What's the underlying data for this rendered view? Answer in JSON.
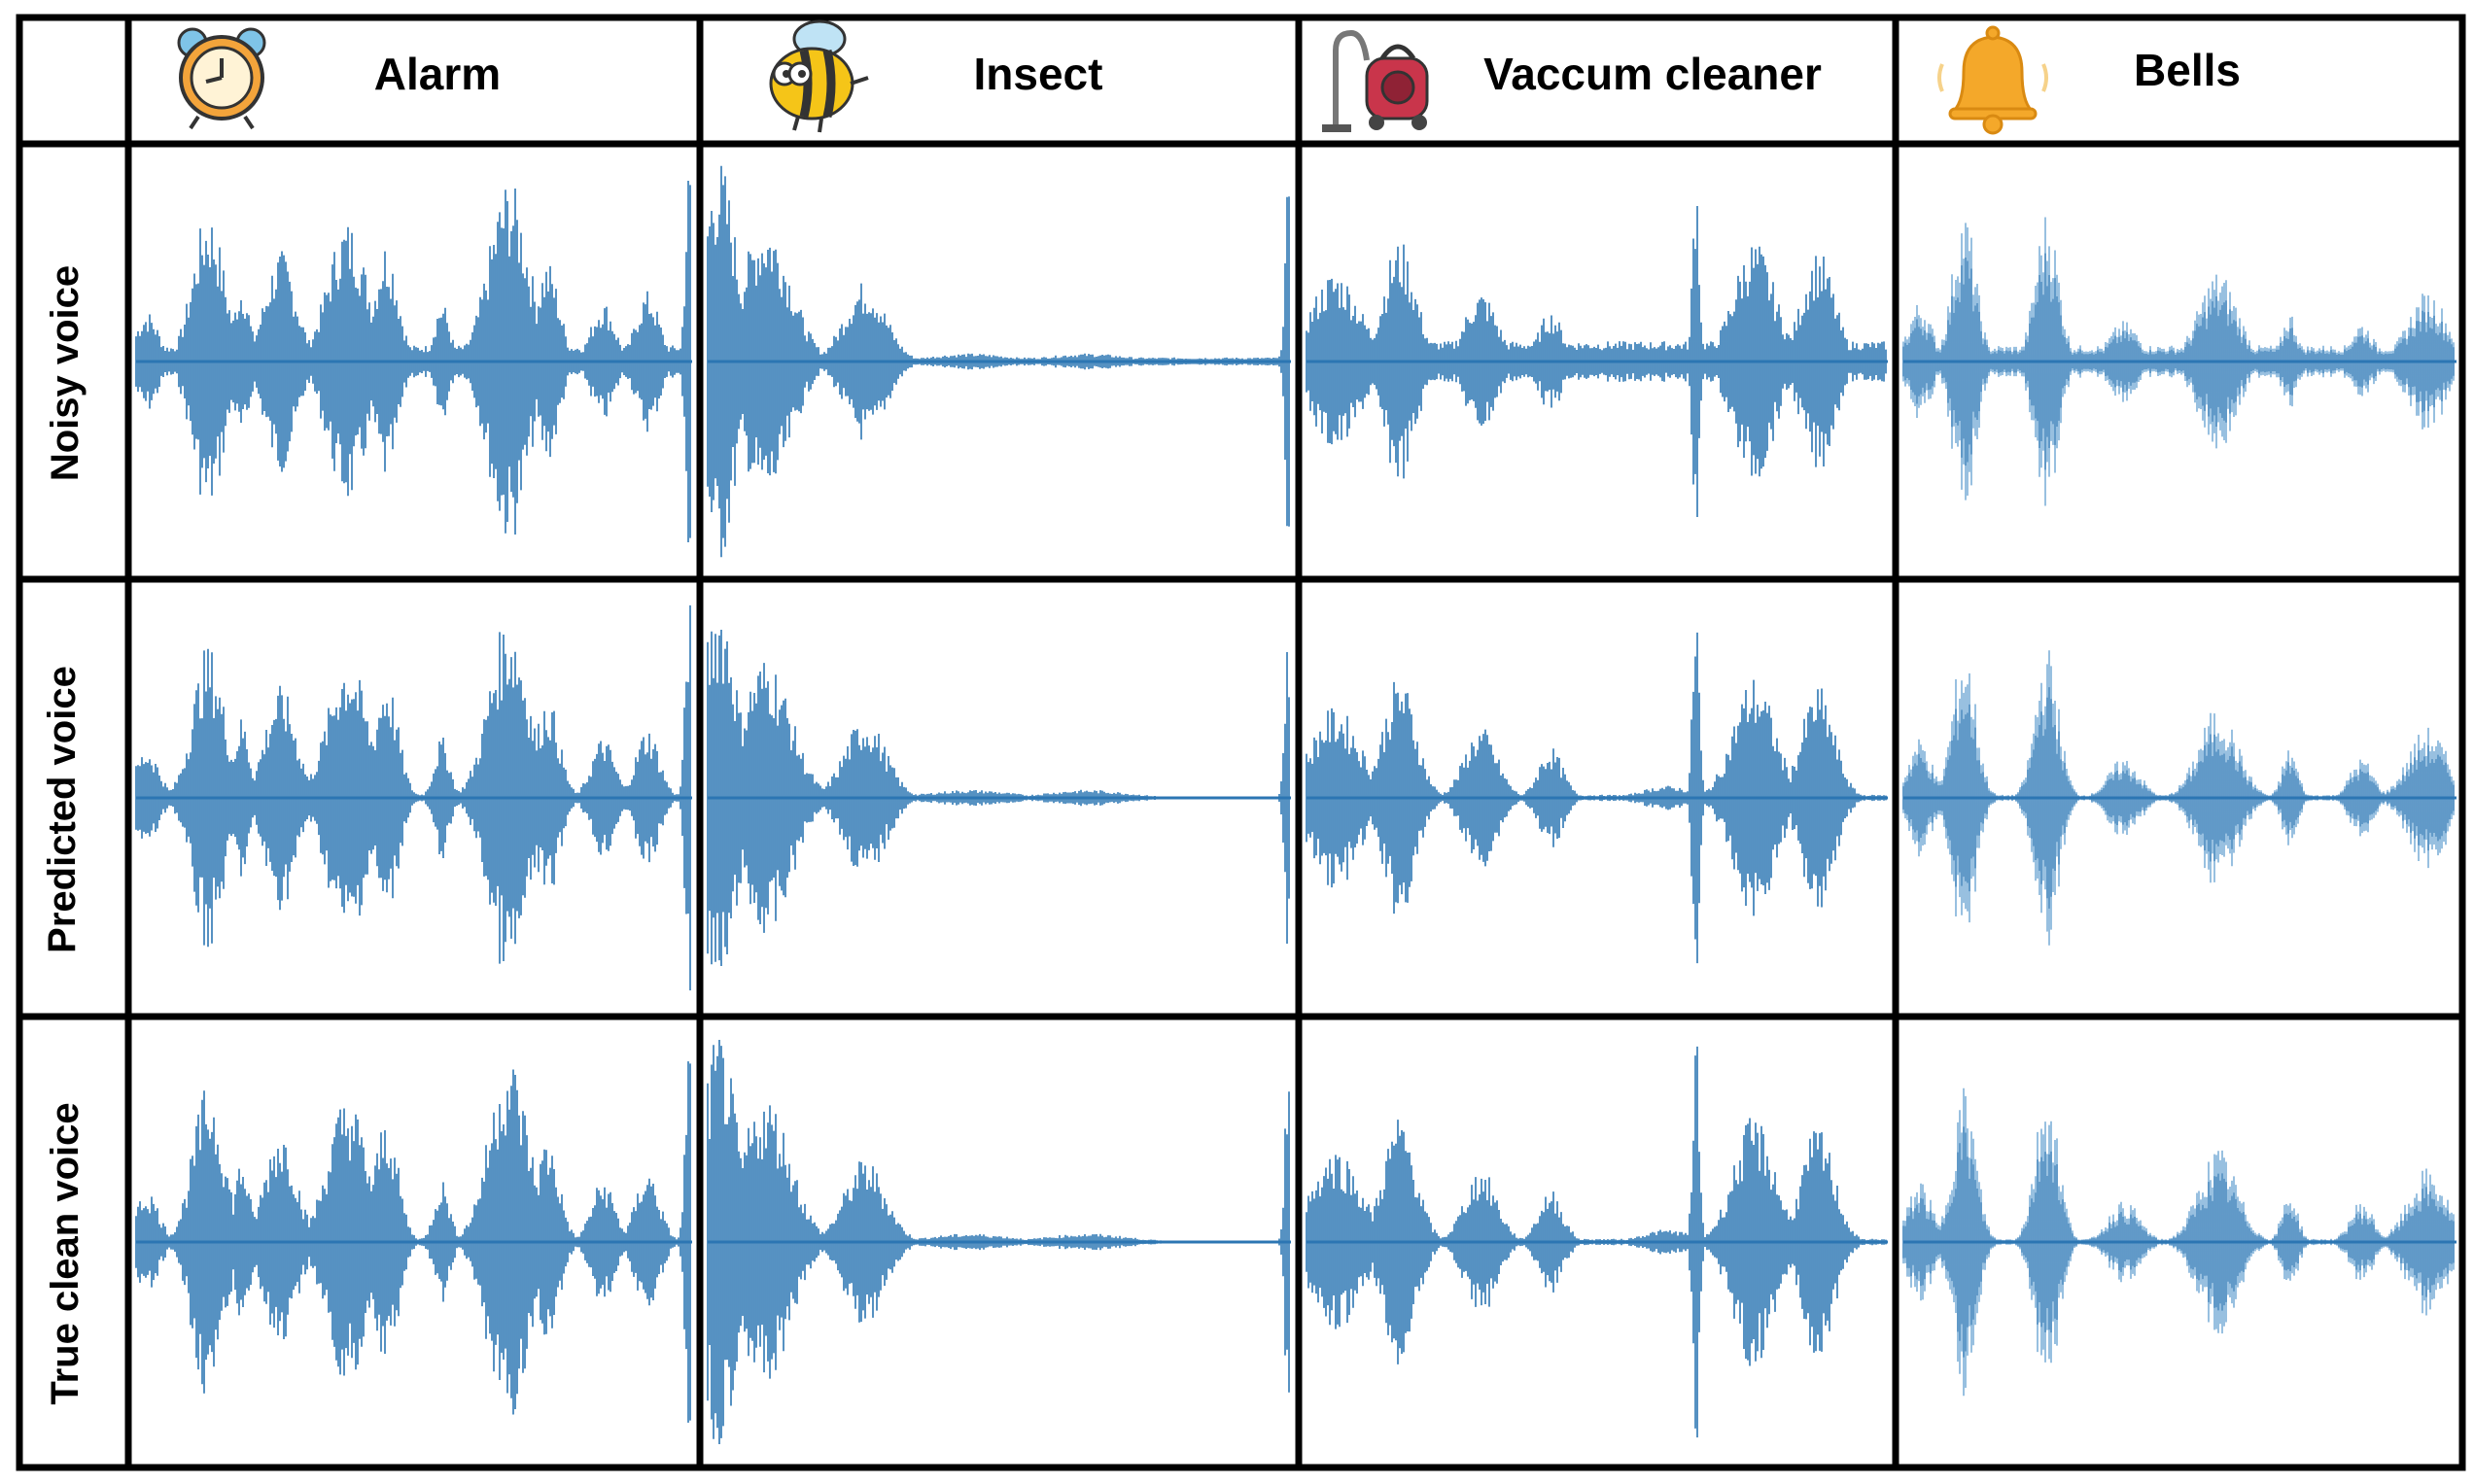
{
  "columns": [
    {
      "label": "Alarm",
      "icon": "alarm-clock-icon"
    },
    {
      "label": "Insect",
      "icon": "bee-icon"
    },
    {
      "label": "Vaccum cleaner",
      "icon": "vacuum-cleaner-icon"
    },
    {
      "label": "Bells",
      "icon": "bell-icon"
    }
  ],
  "rows": [
    {
      "label": "Noisy voice"
    },
    {
      "label": "Predicted voice"
    },
    {
      "label": "True clean voice"
    }
  ],
  "colors": {
    "waveform": "#2c76b3",
    "waveform_light": "#7fb0d8",
    "grid": "#000000",
    "alarm_body": "#f3a43b",
    "bee_body": "#f5c518",
    "vacuum_body": "#c9354b",
    "bell_body": "#f4a82a"
  }
}
